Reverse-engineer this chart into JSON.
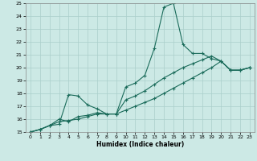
{
  "xlabel": "Humidex (Indice chaleur)",
  "xlim": [
    -0.5,
    23.5
  ],
  "ylim": [
    15,
    25
  ],
  "xticks": [
    0,
    1,
    2,
    3,
    4,
    5,
    6,
    7,
    8,
    9,
    10,
    11,
    12,
    13,
    14,
    15,
    16,
    17,
    18,
    19,
    20,
    21,
    22,
    23
  ],
  "yticks": [
    15,
    16,
    17,
    18,
    19,
    20,
    21,
    22,
    23,
    24,
    25
  ],
  "bg_color": "#cce9e5",
  "grid_color": "#aacfcb",
  "line_color": "#1a6b5a",
  "series1_x": [
    0,
    1,
    2,
    3,
    4,
    5,
    6,
    7,
    8,
    9,
    10,
    11,
    12,
    13,
    14,
    15,
    16,
    17,
    18,
    19,
    20,
    21,
    22,
    23
  ],
  "series1_y": [
    15.0,
    15.2,
    15.5,
    15.6,
    17.9,
    17.8,
    17.1,
    16.8,
    16.4,
    16.4,
    18.5,
    18.8,
    19.4,
    21.5,
    24.7,
    25.0,
    21.8,
    21.1,
    21.1,
    20.7,
    20.5,
    19.8,
    19.8,
    20.0
  ],
  "series2_x": [
    0,
    1,
    2,
    3,
    4,
    5,
    6,
    7,
    8,
    9,
    10,
    11,
    12,
    13,
    14,
    15,
    16,
    17,
    18,
    19,
    20,
    21,
    22,
    23
  ],
  "series2_y": [
    15.0,
    15.2,
    15.5,
    16.0,
    15.8,
    16.2,
    16.3,
    16.5,
    16.4,
    16.4,
    17.5,
    17.8,
    18.2,
    18.7,
    19.2,
    19.6,
    20.0,
    20.3,
    20.6,
    20.9,
    20.5,
    19.8,
    19.8,
    20.0
  ],
  "series3_x": [
    0,
    1,
    2,
    3,
    4,
    5,
    6,
    7,
    8,
    9,
    10,
    11,
    12,
    13,
    14,
    15,
    16,
    17,
    18,
    19,
    20,
    21,
    22,
    23
  ],
  "series3_y": [
    15.0,
    15.2,
    15.5,
    15.8,
    15.9,
    16.0,
    16.2,
    16.4,
    16.4,
    16.4,
    16.7,
    17.0,
    17.3,
    17.6,
    18.0,
    18.4,
    18.8,
    19.2,
    19.6,
    20.0,
    20.5,
    19.8,
    19.8,
    20.0
  ]
}
